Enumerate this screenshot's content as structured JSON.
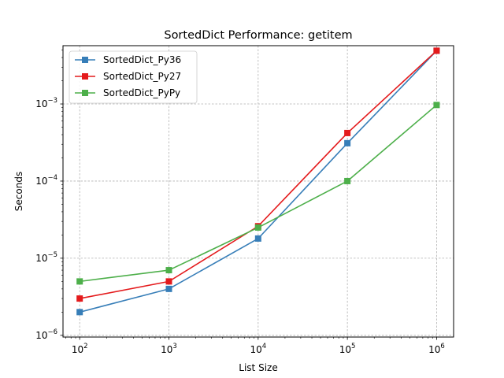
{
  "chart_data": {
    "type": "line",
    "title": "SortedDict Performance: getitem",
    "xlabel": "List Size",
    "ylabel": "Seconds",
    "xscale": "log",
    "yscale": "log",
    "x": [
      100,
      1000,
      10000,
      100000,
      1000000
    ],
    "x_ticks": [
      {
        "value": 100,
        "base": "10",
        "exp": "2"
      },
      {
        "value": 1000,
        "base": "10",
        "exp": "3"
      },
      {
        "value": 10000,
        "base": "10",
        "exp": "4"
      },
      {
        "value": 100000,
        "base": "10",
        "exp": "5"
      },
      {
        "value": 1000000,
        "base": "10",
        "exp": "6"
      }
    ],
    "y_ticks": [
      {
        "value": 1e-06,
        "base": "10",
        "exp": "−6"
      },
      {
        "value": 1e-05,
        "base": "10",
        "exp": "−5"
      },
      {
        "value": 0.0001,
        "base": "10",
        "exp": "−4"
      },
      {
        "value": 0.001,
        "base": "10",
        "exp": "−3"
      }
    ],
    "xlim": [
      65,
      1550000
    ],
    "ylim": [
      9.5e-07,
      0.0057
    ],
    "grid": true,
    "legend_position": "upper-left",
    "series": [
      {
        "name": "SortedDict_Py36",
        "color": "#377eb8",
        "marker": "square",
        "values": [
          2e-06,
          4e-06,
          1.8e-05,
          0.00031,
          0.0049
        ]
      },
      {
        "name": "SortedDict_Py27",
        "color": "#e41a1c",
        "marker": "square",
        "values": [
          3e-06,
          5e-06,
          2.6e-05,
          0.00042,
          0.0049
        ]
      },
      {
        "name": "SortedDict_PyPy",
        "color": "#4daf4a",
        "marker": "square",
        "values": [
          5e-06,
          7e-06,
          2.5e-05,
          0.0001,
          0.00097
        ]
      }
    ]
  }
}
